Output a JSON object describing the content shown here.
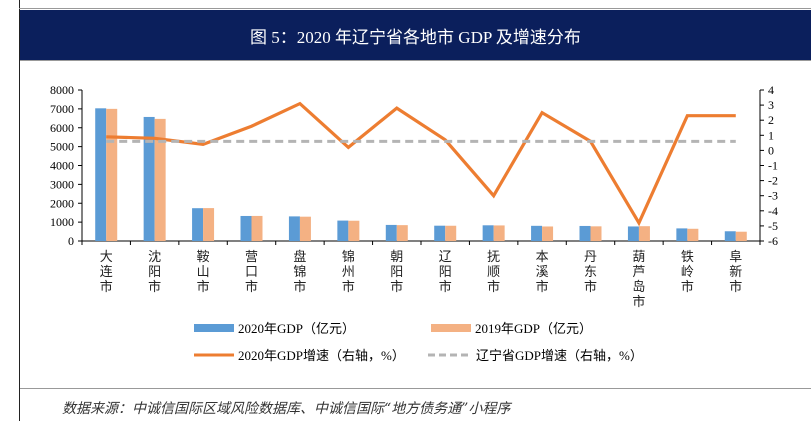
{
  "title": "图 5：2020 年辽宁省各地市 GDP 及增速分布",
  "footer": "数据来源：中诚信国际区域风险数据库、中诚信国际“地方债务通”小程序",
  "colors": {
    "bar2020": "#5b9bd5",
    "bar2019": "#f4b183",
    "growth": "#ed7d31",
    "province": "#b4b4b4",
    "title_bg": "#0b1f5c"
  },
  "chart_data": {
    "type": "bar",
    "title": "2020 年辽宁省各地市 GDP 及增速分布",
    "categories": [
      "大连市",
      "沈阳市",
      "鞍山市",
      "营口市",
      "盘锦市",
      "锦州市",
      "朝阳市",
      "辽阳市",
      "抚顺市",
      "本溪市",
      "丹东市",
      "葫芦岛市",
      "铁岭市",
      "阜新市"
    ],
    "series": [
      {
        "name": "2020年GDP（亿元）",
        "axis": "left",
        "type": "bar",
        "values": [
          7030,
          6572,
          1738,
          1326,
          1304,
          1082,
          852,
          811,
          832,
          804,
          797,
          771,
          668,
          516
        ]
      },
      {
        "name": "2019年GDP（亿元）",
        "axis": "left",
        "type": "bar",
        "values": [
          7001,
          6470,
          1743,
          1328,
          1288,
          1074,
          840,
          808,
          825,
          770,
          777,
          785,
          647,
          492
        ]
      },
      {
        "name": "2020年GDP增速（右轴，%）",
        "axis": "right",
        "type": "line",
        "values": [
          0.9,
          0.8,
          0.4,
          1.6,
          3.1,
          0.2,
          2.8,
          0.7,
          -3.0,
          2.5,
          0.6,
          -4.8,
          2.3,
          2.3
        ]
      },
      {
        "name": "辽宁省GDP增速（右轴，%）",
        "axis": "right",
        "type": "line",
        "style": "dashed",
        "values": [
          0.6,
          0.6,
          0.6,
          0.6,
          0.6,
          0.6,
          0.6,
          0.6,
          0.6,
          0.6,
          0.6,
          0.6,
          0.6,
          0.6
        ]
      }
    ],
    "ylim_left": [
      0,
      8000
    ],
    "yticks_left": [
      0,
      1000,
      2000,
      3000,
      4000,
      5000,
      6000,
      7000,
      8000
    ],
    "ylim_right": [
      -6,
      4
    ],
    "yticks_right": [
      4,
      3,
      2,
      1,
      0,
      -1,
      -2,
      -3,
      -4,
      -5,
      -6
    ],
    "grid": false,
    "legend_position": "bottom"
  }
}
